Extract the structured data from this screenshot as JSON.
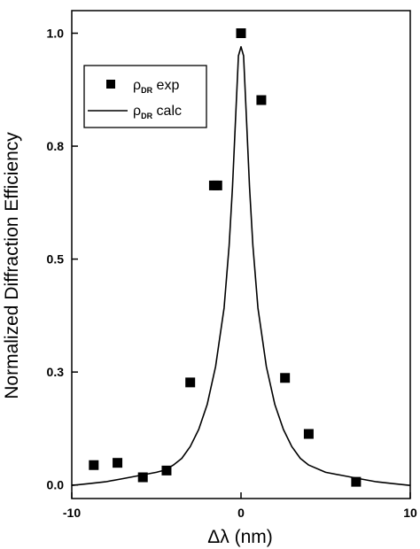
{
  "chart_data": {
    "type": "scatter",
    "xlabel": "Δλ (nm)",
    "ylabel": "Normalized Diffraction Efficiency",
    "xlim": [
      -10,
      10
    ],
    "ylim": [
      -0.03,
      1.05
    ],
    "x_ticks": [
      -10,
      0,
      10
    ],
    "x_tick_labels": [
      "-10",
      "0",
      "10"
    ],
    "y_ticks": [
      0.0,
      0.25,
      0.5,
      0.75,
      1.0
    ],
    "y_tick_labels": [
      "0.0",
      "0.3",
      "0.5",
      "0.8",
      "1.0"
    ],
    "grid": false,
    "legend_position": "top-left",
    "series": [
      {
        "name": "ρDR exp",
        "legend_main": "ρ",
        "legend_sub": "DR",
        "legend_suffix": "exp",
        "kind": "markers",
        "marker": "square",
        "color": "#000000",
        "points": [
          {
            "x": -8.7,
            "y": 0.044
          },
          {
            "x": -7.3,
            "y": 0.049
          },
          {
            "x": -5.8,
            "y": 0.017
          },
          {
            "x": -4.4,
            "y": 0.032
          },
          {
            "x": -3.0,
            "y": 0.227
          },
          {
            "x": -1.6,
            "y": 0.663
          },
          {
            "x": -1.4,
            "y": 0.663
          },
          {
            "x": 0.0,
            "y": 1.0
          },
          {
            "x": 1.2,
            "y": 0.852
          },
          {
            "x": 2.6,
            "y": 0.237
          },
          {
            "x": 4.0,
            "y": 0.113
          },
          {
            "x": 6.8,
            "y": 0.007
          }
        ]
      },
      {
        "name": "ρDR calc",
        "legend_main": "ρ",
        "legend_sub": "DR",
        "legend_suffix": "calc",
        "kind": "line",
        "color": "#000000",
        "points": [
          {
            "x": -10.0,
            "y": -0.001
          },
          {
            "x": -9.0,
            "y": 0.003
          },
          {
            "x": -8.0,
            "y": 0.007
          },
          {
            "x": -7.0,
            "y": 0.014
          },
          {
            "x": -6.0,
            "y": 0.021
          },
          {
            "x": -5.0,
            "y": 0.028
          },
          {
            "x": -4.5,
            "y": 0.033
          },
          {
            "x": -4.0,
            "y": 0.044
          },
          {
            "x": -3.5,
            "y": 0.059
          },
          {
            "x": -3.0,
            "y": 0.085
          },
          {
            "x": -2.5,
            "y": 0.123
          },
          {
            "x": -2.0,
            "y": 0.178
          },
          {
            "x": -1.5,
            "y": 0.262
          },
          {
            "x": -1.0,
            "y": 0.392
          },
          {
            "x": -0.7,
            "y": 0.53
          },
          {
            "x": -0.5,
            "y": 0.66
          },
          {
            "x": -0.3,
            "y": 0.83
          },
          {
            "x": -0.15,
            "y": 0.95
          },
          {
            "x": 0.0,
            "y": 0.97
          },
          {
            "x": 0.15,
            "y": 0.95
          },
          {
            "x": 0.3,
            "y": 0.83
          },
          {
            "x": 0.5,
            "y": 0.66
          },
          {
            "x": 0.7,
            "y": 0.53
          },
          {
            "x": 1.0,
            "y": 0.392
          },
          {
            "x": 1.5,
            "y": 0.262
          },
          {
            "x": 2.0,
            "y": 0.178
          },
          {
            "x": 2.5,
            "y": 0.123
          },
          {
            "x": 3.0,
            "y": 0.085
          },
          {
            "x": 3.5,
            "y": 0.059
          },
          {
            "x": 4.0,
            "y": 0.044
          },
          {
            "x": 5.0,
            "y": 0.028
          },
          {
            "x": 6.0,
            "y": 0.021
          },
          {
            "x": 7.0,
            "y": 0.014
          },
          {
            "x": 8.0,
            "y": 0.007
          },
          {
            "x": 9.0,
            "y": 0.003
          },
          {
            "x": 10.0,
            "y": -0.001
          }
        ]
      }
    ]
  }
}
